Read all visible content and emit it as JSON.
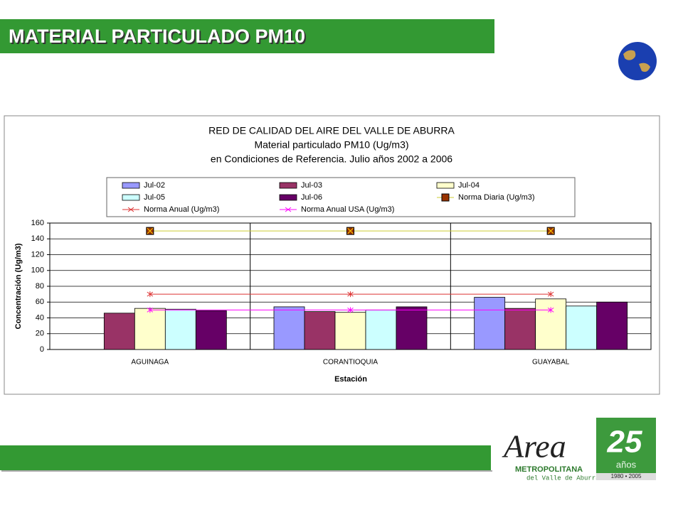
{
  "header": {
    "title": "MATERIAL PARTICULADO PM10"
  },
  "chart_data": {
    "type": "bar",
    "title": [
      "RED DE CALIDAD DEL AIRE DEL VALLE DE ABURRA",
      "Material particulado PM10 (Ug/m3)",
      "en Condiciones de Referencia. Julio años 2002 a 2006"
    ],
    "x_label": "Estación",
    "y_label": "Concentración (Ug/m3)",
    "categories": [
      "AGUINAGA",
      "CORANTIOQUIA",
      "GUAYABAL"
    ],
    "series": [
      {
        "name": "Jul-02",
        "color": "#9999ff",
        "values": [
          null,
          54,
          66
        ]
      },
      {
        "name": "Jul-03",
        "color": "#993366",
        "values": [
          46,
          48,
          52
        ]
      },
      {
        "name": "Jul-04",
        "color": "#ffffcc",
        "values": [
          52,
          47,
          64
        ]
      },
      {
        "name": "Jul-05",
        "color": "#ccffff",
        "values": [
          51,
          50,
          55
        ]
      },
      {
        "name": "Jul-06",
        "color": "#660066",
        "values": [
          49,
          54,
          60
        ]
      },
      {
        "name": "Norma Diaria  (Ug/m3)",
        "type": "line",
        "color": "#cccc33",
        "marker_color": "#993300",
        "values": [
          150,
          150,
          150
        ]
      },
      {
        "name": "Norma Anual (Ug/m3)",
        "type": "line",
        "color": "#dd3333",
        "values": [
          70,
          70,
          70
        ]
      },
      {
        "name": "Norma Anual USA (Ug/m3)",
        "type": "line",
        "color": "#ff00ff",
        "values": [
          50,
          50,
          50
        ]
      }
    ],
    "ylim": [
      0,
      160
    ],
    "yticks": [
      0,
      20,
      40,
      60,
      80,
      100,
      120,
      140,
      160
    ],
    "grid": true
  },
  "logo": {
    "word": "Area",
    "name": "METROPOLITANA",
    "sub": "del Valle de Aburrá",
    "number": "25",
    "years": "años",
    "range": "1980 • 2005"
  }
}
